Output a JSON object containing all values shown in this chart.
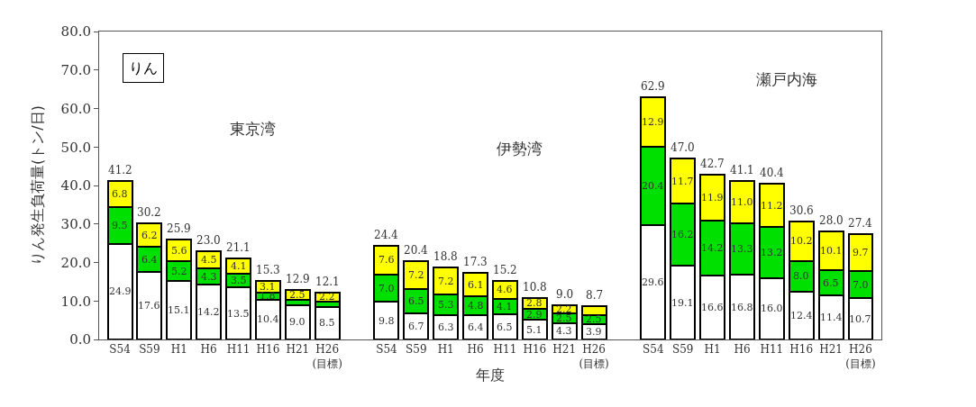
{
  "chart_data": {
    "type": "bar",
    "stacked": true,
    "xlabel": "年度",
    "ylabel": "りん発生負荷量(トン/日)",
    "categories": [
      "S54",
      "S59",
      "H1",
      "H6",
      "H11",
      "H16",
      "H21",
      "H26\n(目標)",
      null,
      "S54",
      "S59",
      "H1",
      "H6",
      "H11",
      "H16",
      "H21",
      "H26\n(目標)",
      null,
      "S54",
      "S59",
      "H1",
      "H6",
      "H11",
      "H16",
      "H21",
      "H26\n(目標)"
    ],
    "series": [
      {
        "color": "#ffffff",
        "values": [
          24.9,
          17.6,
          15.1,
          14.2,
          13.5,
          10.4,
          9.0,
          8.5,
          null,
          9.8,
          6.7,
          6.3,
          6.4,
          6.5,
          5.1,
          4.3,
          3.9,
          null,
          29.6,
          19.1,
          16.6,
          16.8,
          16.0,
          12.4,
          11.4,
          10.7
        ],
        "value_labels": [
          "24.9",
          "17.6",
          "15.1",
          "14.2",
          "13.5",
          "10.4",
          "9.0",
          "8.5",
          null,
          "9.8",
          "6.7",
          "6.3",
          "6.4",
          "6.5",
          "5.1",
          "4.3",
          "3.9",
          null,
          "29.6",
          "19.1",
          "16.6",
          "16.8",
          "16.0",
          "12.4",
          "11.4",
          "10.7"
        ]
      },
      {
        "color": "#00e000",
        "values": [
          9.5,
          6.4,
          5.2,
          4.3,
          3.5,
          1.8,
          1.4,
          1.4,
          null,
          7.0,
          6.5,
          5.3,
          4.8,
          4.1,
          2.9,
          2.5,
          2.5,
          null,
          20.4,
          16.2,
          14.2,
          13.3,
          13.2,
          8.0,
          6.5,
          7.0
        ],
        "value_labels": [
          "9.5",
          "6.4",
          "5.2",
          "4.3",
          "3.5",
          "1.8",
          null,
          null,
          null,
          "7.0",
          "6.5",
          "5.3",
          "4.8",
          "4.1",
          "2.9",
          "2.5",
          "2.5",
          null,
          "20.4",
          "16.2",
          "14.2",
          "13.3",
          "13.2",
          "8.0",
          "6.5",
          "7.0"
        ]
      },
      {
        "color": "#ffff00",
        "values": [
          6.8,
          6.2,
          5.6,
          4.5,
          4.1,
          3.1,
          2.5,
          2.2,
          null,
          7.6,
          7.2,
          7.2,
          6.1,
          4.6,
          2.8,
          2.2,
          2.3,
          null,
          12.9,
          11.7,
          11.9,
          11.0,
          11.2,
          10.2,
          10.1,
          9.7
        ],
        "value_labels": [
          "6.8",
          "6.2",
          "5.6",
          "4.5",
          "4.1",
          "3.1",
          "2.5",
          "2.2",
          null,
          "7.6",
          "7.2",
          "7.2",
          "6.1",
          "4.6",
          "2.8",
          "2.2",
          null,
          null,
          "12.9",
          "11.7",
          "11.9",
          "11.0",
          "11.2",
          "10.2",
          "10.1",
          "9.7"
        ]
      }
    ],
    "totals": [
      "41.2",
      "30.2",
      "25.9",
      "23.0",
      "21.1",
      "15.3",
      "12.9",
      "12.1",
      null,
      "24.4",
      "20.4",
      "18.8",
      "17.3",
      "15.2",
      "10.8",
      "9.0",
      "8.7",
      null,
      "62.9",
      "47.0",
      "42.7",
      "41.1",
      "40.4",
      "30.6",
      "28.0",
      "27.4"
    ],
    "ylim": [
      0,
      80
    ],
    "yticks": [
      {
        "value": 0,
        "label": "0.0"
      },
      {
        "value": 10,
        "label": "10.0"
      },
      {
        "value": 20,
        "label": "20.0"
      },
      {
        "value": 30,
        "label": "30.0"
      },
      {
        "value": 40,
        "label": "40.0"
      },
      {
        "value": 50,
        "label": "50.0"
      },
      {
        "value": 60,
        "label": "60.0"
      },
      {
        "value": 70,
        "label": "70.0"
      },
      {
        "value": 80,
        "label": "80.0"
      }
    ],
    "annotations": [
      "りん",
      "東京湾",
      "伊勢湾",
      "瀬戸内海"
    ]
  }
}
